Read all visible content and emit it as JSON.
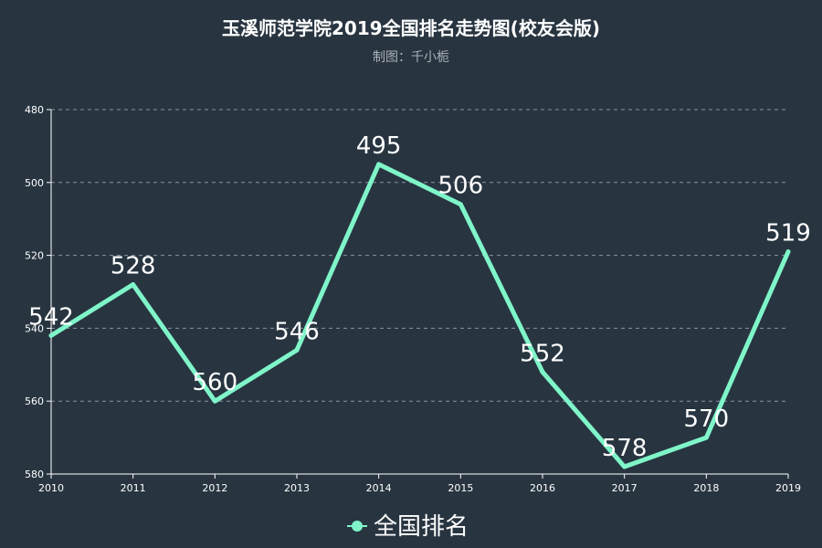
{
  "chart_data": {
    "type": "line",
    "title": "玉溪师范学院2019全国排名走势图(校友会版)",
    "subtitle": "制图：千小栀",
    "xlabel": "",
    "ylabel": "",
    "categories": [
      "2010",
      "2011",
      "2012",
      "2013",
      "2014",
      "2015",
      "2016",
      "2017",
      "2018",
      "2019"
    ],
    "series": [
      {
        "name": "全国排名",
        "values": [
          542,
          528,
          560,
          546,
          495,
          506,
          552,
          578,
          570,
          519
        ]
      }
    ],
    "ylim": [
      480,
      580
    ],
    "y_inverted": true,
    "yticks": [
      "480",
      "500",
      "520",
      "540",
      "560",
      "580"
    ],
    "grid": true,
    "grid_style": "dashed",
    "legend_position": "bottom-center",
    "colors": {
      "background": "#283541",
      "line": "#7ff5c9",
      "text": "#ffffff",
      "subtitle": "#aab0b8",
      "grid": "#8a949e",
      "axis": "#ffffff"
    }
  }
}
